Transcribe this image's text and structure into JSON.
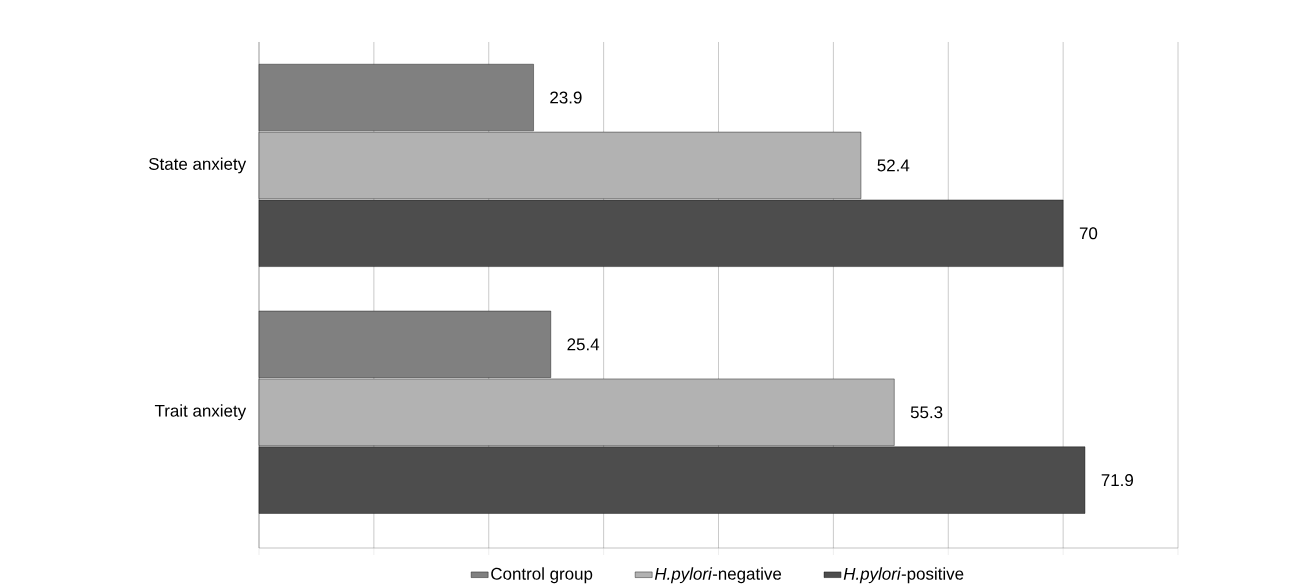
{
  "chart_data": {
    "type": "bar",
    "orientation": "horizontal",
    "categories": [
      "State anxiety",
      "Trait anxiety"
    ],
    "series": [
      {
        "name": "Control group",
        "color": "#808080",
        "values": [
          23.9,
          25.4
        ],
        "value_labels": [
          "23.9",
          "25.4"
        ]
      },
      {
        "name": "*H.pylori*-negative",
        "color": "#b2b2b2",
        "values": [
          52.4,
          55.3
        ],
        "value_labels": [
          "52.4",
          "55.3"
        ]
      },
      {
        "name": "*H.pylori*-positive",
        "color": "#4d4d4d",
        "values": [
          70,
          71.9
        ],
        "value_labels": [
          "70",
          "71.9"
        ]
      }
    ],
    "xlim": [
      0,
      80
    ],
    "xticks": [
      {
        "value": 0,
        "label": null
      },
      {
        "value": 10,
        "label": null
      },
      {
        "value": 20,
        "label": null
      },
      {
        "value": 30,
        "label": null
      },
      {
        "value": 40,
        "label": null
      },
      {
        "value": 50,
        "label": null
      },
      {
        "value": 60,
        "label": null
      },
      {
        "value": 70,
        "label": null
      },
      {
        "value": 80,
        "label": null
      }
    ],
    "tick_labels": "y",
    "grid": "x",
    "legend": "bottom"
  }
}
